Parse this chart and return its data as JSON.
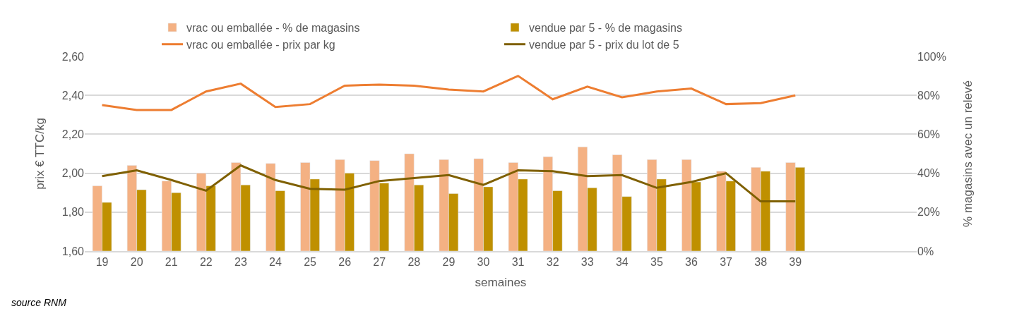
{
  "chart_data": {
    "type": "bar",
    "xlabel": "semaines",
    "ylabel": "prix € TTC/kg",
    "y2label": "% magasins avec un relevé",
    "categories": [
      "19",
      "20",
      "21",
      "22",
      "23",
      "24",
      "25",
      "26",
      "27",
      "28",
      "29",
      "30",
      "31",
      "32",
      "33",
      "34",
      "35",
      "36",
      "37",
      "38",
      "39",
      null,
      null,
      null
    ],
    "series": [
      {
        "name": "vrac ou emballée - % de magasins",
        "axis": "y2",
        "color": "#f4b183",
        "values": [
          33.5,
          44,
          36,
          40,
          45.5,
          45,
          45.5,
          47,
          46.5,
          50,
          47,
          47.5,
          45.5,
          48.5,
          53.5,
          49.5,
          47,
          47,
          41,
          43,
          45.5,
          null,
          null,
          null
        ]
      },
      {
        "name": "vendue par 5 - % de magasins",
        "axis": "y2",
        "color": "#bf9000",
        "values": [
          25,
          31.5,
          30,
          33.5,
          34,
          31,
          37,
          40,
          35,
          34,
          29.5,
          33,
          37,
          31,
          32.5,
          28,
          37,
          35.5,
          36,
          41,
          43,
          null,
          null,
          null
        ]
      },
      {
        "name": "vrac ou emballée - prix par kg",
        "type": "line",
        "color": "#ed7d31",
        "values": [
          2.35,
          2.325,
          2.325,
          2.42,
          2.46,
          2.34,
          2.355,
          2.45,
          2.455,
          2.45,
          2.43,
          2.42,
          2.5,
          2.38,
          2.445,
          2.39,
          2.42,
          2.435,
          2.355,
          2.36,
          2.4,
          null,
          null,
          null
        ]
      },
      {
        "name": "vendue par 5 - prix du lot de 5",
        "type": "line",
        "color": "#7f6000",
        "values": [
          1.985,
          2.015,
          1.965,
          1.91,
          2.04,
          1.965,
          1.92,
          1.915,
          1.96,
          1.975,
          1.99,
          1.94,
          2.015,
          2.01,
          1.985,
          1.99,
          1.925,
          1.955,
          2.0,
          1.855,
          1.855,
          null,
          null,
          null
        ]
      }
    ],
    "ylim": [
      1.6,
      2.6
    ],
    "yticks": [
      {
        "value": 1.6,
        "label": "1,60"
      },
      {
        "value": 1.8,
        "label": "1,80"
      },
      {
        "value": 2.0,
        "label": "2,00"
      },
      {
        "value": 2.2,
        "label": "2,20"
      },
      {
        "value": 2.4,
        "label": "2,40"
      },
      {
        "value": 2.6,
        "label": "2,60"
      }
    ],
    "y2lim": [
      0,
      100
    ],
    "y2ticks": [
      {
        "value": 0,
        "label": "0%"
      },
      {
        "value": 20,
        "label": "20%"
      },
      {
        "value": 40,
        "label": "40%"
      },
      {
        "value": 60,
        "label": "60%"
      },
      {
        "value": 80,
        "label": "80%"
      },
      {
        "value": 100,
        "label": "100%"
      }
    ],
    "grid": "y",
    "legend": "top",
    "marker": "none",
    "line_style": "solid",
    "annotations": [
      "source RNM"
    ]
  }
}
